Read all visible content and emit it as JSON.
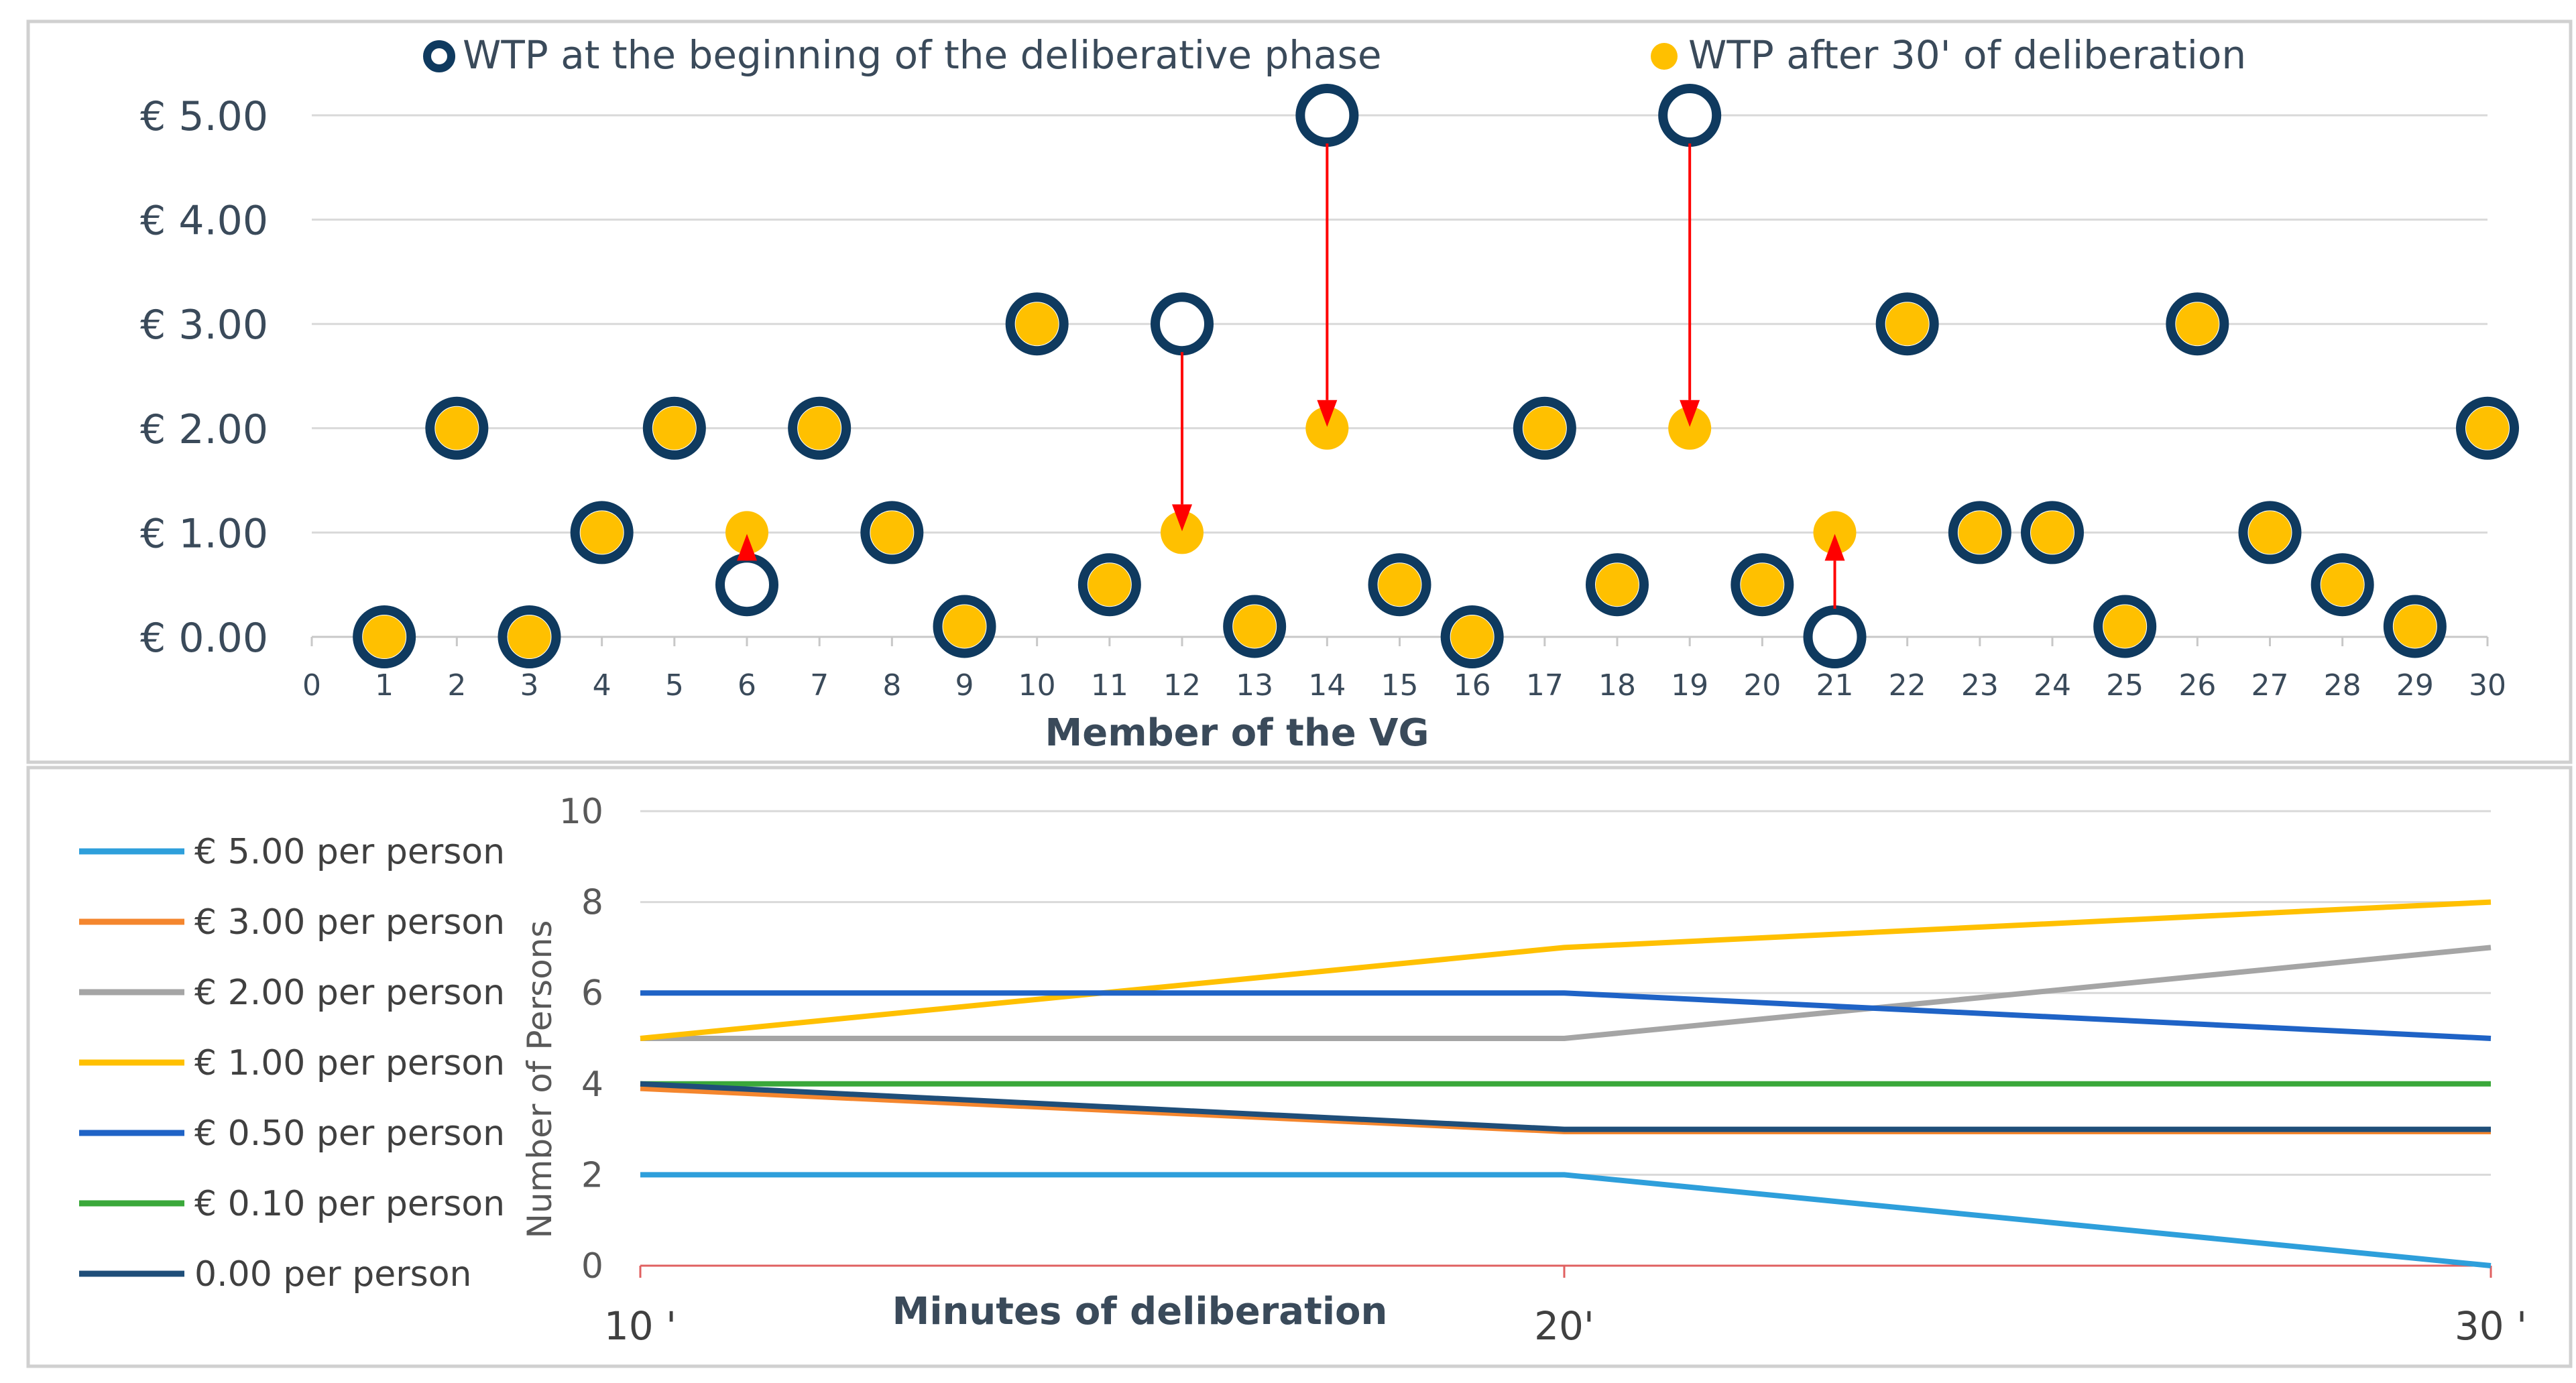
{
  "chart_data": [
    {
      "type": "scatter",
      "xlabel": "Member of the VG",
      "ylabel": "",
      "xlim": [
        0,
        30
      ],
      "ylim": [
        0,
        5
      ],
      "x_ticks": [
        "0",
        "1",
        "2",
        "3",
        "4",
        "5",
        "6",
        "7",
        "8",
        "9",
        "10",
        "11",
        "12",
        "13",
        "14",
        "15",
        "16",
        "17",
        "18",
        "19",
        "20",
        "21",
        "22",
        "23",
        "24",
        "25",
        "26",
        "27",
        "28",
        "29",
        "30"
      ],
      "y_ticks": [
        "€ 0.00",
        "€ 1.00",
        "€ 2.00",
        "€ 3.00",
        "€ 4.00",
        "€ 5.00"
      ],
      "legend_position": "top",
      "series": [
        {
          "name": "WTP at the beginning of the deliberative phase",
          "color": "#0f3a5f",
          "x": [
            1,
            2,
            3,
            4,
            5,
            6,
            7,
            8,
            9,
            10,
            11,
            12,
            13,
            14,
            15,
            16,
            17,
            18,
            19,
            20,
            21,
            22,
            23,
            24,
            25,
            26,
            27,
            28,
            29,
            30
          ],
          "y": [
            0,
            2,
            0,
            1,
            2,
            0.5,
            2,
            1,
            0.1,
            3,
            0.5,
            3,
            0.1,
            5,
            0.5,
            0,
            2,
            0.5,
            5,
            0.5,
            0,
            3,
            1,
            1,
            0.1,
            3,
            1,
            0.5,
            0.1,
            2
          ]
        },
        {
          "name": "WTP after 30' of deliberation",
          "color": "#ffc000",
          "x": [
            1,
            2,
            3,
            4,
            5,
            6,
            7,
            8,
            9,
            10,
            11,
            12,
            13,
            14,
            15,
            16,
            17,
            18,
            19,
            20,
            21,
            22,
            23,
            24,
            25,
            26,
            27,
            28,
            29,
            30
          ],
          "y": [
            0,
            2,
            0,
            1,
            2,
            1,
            2,
            1,
            0.1,
            3,
            0.5,
            1,
            0.1,
            2,
            0.5,
            0,
            2,
            0.5,
            2,
            0.5,
            1,
            3,
            1,
            1,
            0.1,
            3,
            1,
            0.5,
            0.1,
            2
          ]
        }
      ],
      "annotations": [
        {
          "type": "arrow",
          "x": 6,
          "from": 0.5,
          "to": 1
        },
        {
          "type": "arrow",
          "x": 12,
          "from": 3,
          "to": 1
        },
        {
          "type": "arrow",
          "x": 14,
          "from": 5,
          "to": 2
        },
        {
          "type": "arrow",
          "x": 19,
          "from": 5,
          "to": 2
        },
        {
          "type": "arrow",
          "x": 21,
          "from": 0,
          "to": 1
        }
      ],
      "arrow_color": "#ff0000"
    },
    {
      "type": "line",
      "xlabel": "Minutes of deliberation",
      "ylabel": "Number of Persons",
      "categories": [
        "10 '",
        "20'",
        "30 '"
      ],
      "ylim": [
        0,
        10
      ],
      "y_ticks": [
        "0",
        "2",
        "4",
        "6",
        "8",
        "10"
      ],
      "grid": true,
      "legend_position": "left",
      "series": [
        {
          "name": "€ 5.00 per person",
          "color": "#2e9fdb",
          "values": [
            2,
            2,
            0
          ]
        },
        {
          "name": "€ 3.00 per person",
          "color": "#f4862e",
          "values": [
            3.9,
            2.95,
            2.95
          ]
        },
        {
          "name": "€ 2.00 per person",
          "color": "#a5a5a5",
          "values": [
            5,
            5,
            7
          ]
        },
        {
          "name": "€ 1.00 per person",
          "color": "#ffc000",
          "values": [
            5,
            7,
            8
          ]
        },
        {
          "name": "€ 0.50 per person",
          "color": "#1f63c6",
          "values": [
            6,
            6,
            5
          ]
        },
        {
          "name": "€ 0.10 per person",
          "color": "#3aa83a",
          "values": [
            4,
            4,
            4
          ]
        },
        {
          "name": "0.00 per person",
          "color": "#1f4e79",
          "values": [
            4,
            3,
            3
          ]
        }
      ],
      "x_axis_color": "#e06060"
    }
  ]
}
